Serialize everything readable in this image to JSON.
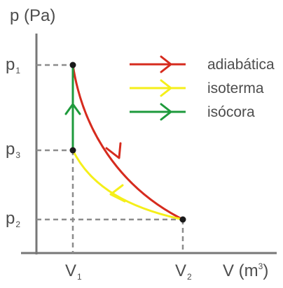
{
  "axes": {
    "y_title": "p (Pa)",
    "x_title_main": "V (m",
    "x_title_sup": "3",
    "x_title_close": ")"
  },
  "ticks": {
    "p1_base": "p",
    "p1_sub": "1",
    "p3_base": "p",
    "p3_sub": "3",
    "p2_base": "p",
    "p2_sub": "2",
    "v1_base": "V",
    "v1_sub": "1",
    "v2_base": "V",
    "v2_sub": "2"
  },
  "legend": [
    {
      "label": "adiabática",
      "color": "#d62b1e"
    },
    {
      "label": "isoterma",
      "color": "#f5ef1a"
    },
    {
      "label": "isócora",
      "color": "#1e9a3c"
    }
  ],
  "colors": {
    "axis": "#777777",
    "dashed": "#8c8c8c",
    "point": "#1a1a1a",
    "adiabatic": "#d62b1e",
    "isotherm": "#f5ef1a",
    "isochoric": "#1e9a3c"
  }
}
